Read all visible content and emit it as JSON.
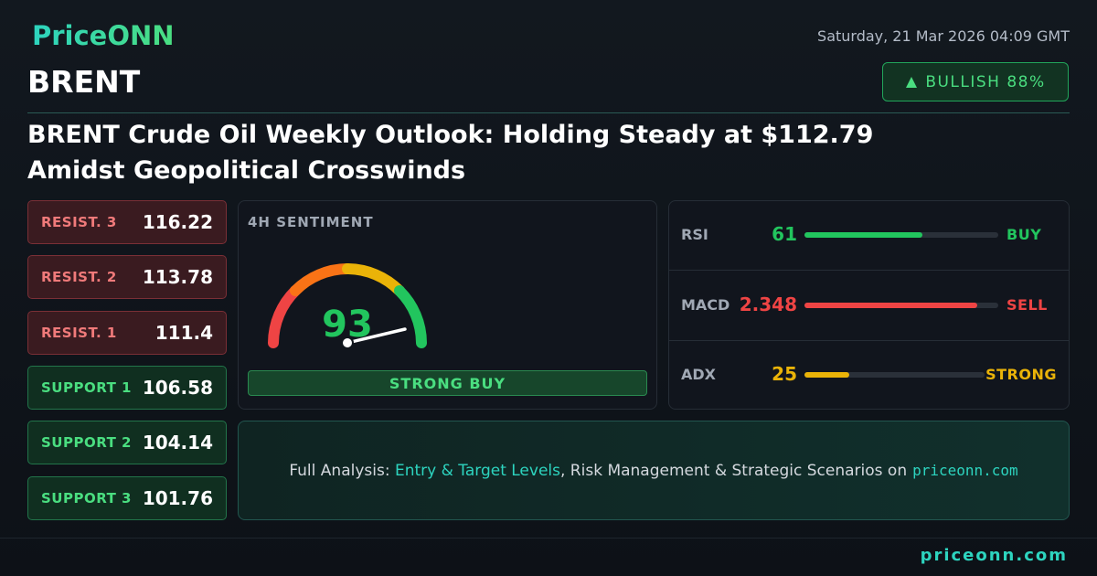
{
  "header": {
    "logo": "PriceONN",
    "datetime": "Saturday, 21 Mar 2026 04:09 GMT",
    "symbol": "BRENT",
    "badge": "BULLISH 88%"
  },
  "headline": "BRENT Crude Oil Weekly Outlook: Holding Steady at $112.79 Amidst Geopolitical Crosswinds",
  "levels": [
    {
      "label": "RESIST. 3",
      "value": 116.22,
      "kind": "resist"
    },
    {
      "label": "RESIST. 2",
      "value": 113.78,
      "kind": "resist"
    },
    {
      "label": "RESIST. 1",
      "value": 111.4,
      "kind": "resist"
    },
    {
      "label": "SUPPORT 1",
      "value": 106.58,
      "kind": "support"
    },
    {
      "label": "SUPPORT 2",
      "value": 104.14,
      "kind": "support"
    },
    {
      "label": "SUPPORT 3",
      "value": 101.76,
      "kind": "support"
    }
  ],
  "sentiment": {
    "title": "4H SENTIMENT",
    "score": 93,
    "verdict": "STRONG BUY"
  },
  "indicators": [
    {
      "name": "RSI",
      "value": 61,
      "signal": "BUY",
      "color": "#22c55e"
    },
    {
      "name": "MACD",
      "value": 2.348,
      "signal": "SELL",
      "color": "#ef4444"
    },
    {
      "name": "ADX",
      "value": 25,
      "signal": "STRONG",
      "color": "#eab308"
    }
  ],
  "cta": {
    "prefix": "Full Analysis:",
    "highlight": "Entry & Target Levels",
    "middle": ", Risk Management & Strategic Scenarios on",
    "site": "priceonn.com"
  },
  "footer": {
    "site": "priceonn.com"
  }
}
